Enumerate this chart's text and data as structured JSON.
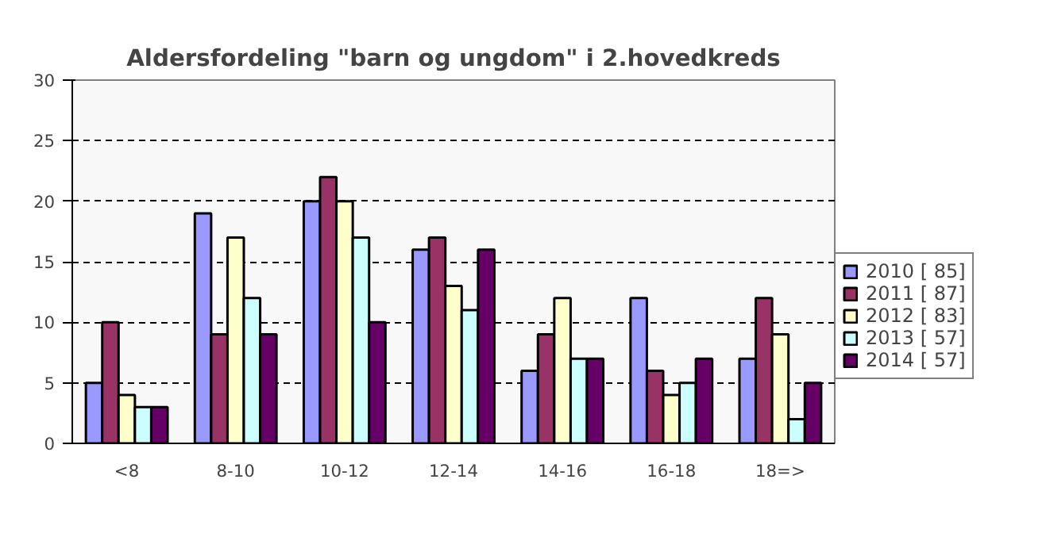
{
  "chart_data": {
    "type": "bar",
    "title": "Aldersfordeling \"barn og ungdom\" i 2.hovedkreds",
    "categories": [
      "<8",
      "8-10",
      "10-12",
      "12-14",
      "14-16",
      "16-18",
      "18=>"
    ],
    "series": [
      {
        "name": "2010 [ 85]",
        "color": "#9999ff",
        "values": [
          5,
          19,
          20,
          16,
          6,
          12,
          7
        ]
      },
      {
        "name": "2011 [ 87]",
        "color": "#993366",
        "values": [
          10,
          9,
          22,
          17,
          9,
          6,
          12
        ]
      },
      {
        "name": "2012 [ 83]",
        "color": "#ffffcc",
        "values": [
          4,
          17,
          20,
          13,
          12,
          4,
          9
        ]
      },
      {
        "name": "2013 [ 57]",
        "color": "#ccffff",
        "values": [
          3,
          12,
          17,
          11,
          7,
          5,
          2
        ]
      },
      {
        "name": "2014 [ 57]",
        "color": "#660066",
        "values": [
          3,
          9,
          10,
          16,
          7,
          7,
          5
        ]
      }
    ],
    "ylim": [
      0,
      30
    ],
    "yticks": [
      0,
      5,
      10,
      15,
      20,
      25,
      30
    ],
    "grid": "y",
    "legend": "right"
  }
}
